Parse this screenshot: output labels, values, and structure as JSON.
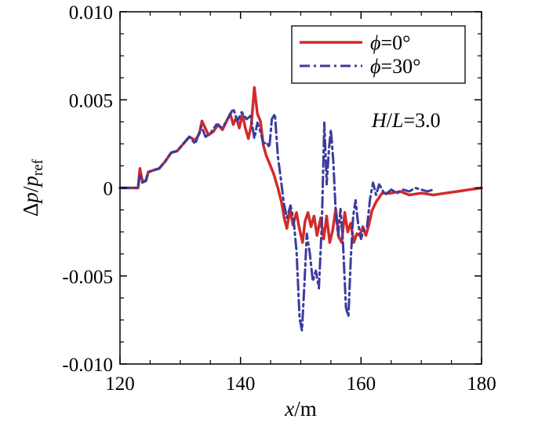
{
  "chart_data": {
    "type": "line",
    "xlabel": {
      "var": "x",
      "unit": "/m"
    },
    "ylabel": {
      "prefix": "Δ",
      "var": "p",
      "sep": "/",
      "var2": "p",
      "sub": "ref"
    },
    "xlim": [
      120,
      180
    ],
    "ylim": [
      -0.01,
      0.01
    ],
    "xticks": [
      {
        "value": 120,
        "label": "120"
      },
      {
        "value": 140,
        "label": "140"
      },
      {
        "value": 160,
        "label": "160"
      },
      {
        "value": 180,
        "label": "180"
      }
    ],
    "yticks": [
      {
        "value": 0.01,
        "label": "0.010"
      },
      {
        "value": 0.005,
        "label": "0.005"
      },
      {
        "value": 0,
        "label": "0"
      },
      {
        "value": -0.005,
        "label": "-0.005"
      },
      {
        "value": -0.01,
        "label": "-0.010"
      }
    ],
    "annotation": {
      "var": "H",
      "sep": "/",
      "var2": "L",
      "tail": "=3.0"
    },
    "legend_position": "top-right",
    "series": [
      {
        "name": "ϕ=0°",
        "name_parts": {
          "sym": "ϕ",
          "rest": "=0°"
        },
        "color": "#d42a2a",
        "dash": "solid",
        "points": [
          [
            120,
            0
          ],
          [
            123,
            0
          ],
          [
            123.3,
            0.0011
          ],
          [
            123.7,
            0.0004
          ],
          [
            124.3,
            0.0004
          ],
          [
            124.7,
            0.0009
          ],
          [
            125.5,
            0.001
          ],
          [
            126.5,
            0.0011
          ],
          [
            127.5,
            0.0015
          ],
          [
            128.5,
            0.002
          ],
          [
            129.5,
            0.0021
          ],
          [
            130.5,
            0.0025
          ],
          [
            131.5,
            0.0029
          ],
          [
            132.5,
            0.0027
          ],
          [
            133.2,
            0.0031
          ],
          [
            133.6,
            0.0038
          ],
          [
            134,
            0.0035
          ],
          [
            134.7,
            0.003
          ],
          [
            135.5,
            0.0032
          ],
          [
            136.3,
            0.0036
          ],
          [
            137,
            0.0033
          ],
          [
            137.7,
            0.0038
          ],
          [
            138.3,
            0.0042
          ],
          [
            138.8,
            0.0036
          ],
          [
            139.3,
            0.004
          ],
          [
            139.8,
            0.0034
          ],
          [
            140.3,
            0.0042
          ],
          [
            140.8,
            0.0034
          ],
          [
            141.3,
            0.0028
          ],
          [
            141.8,
            0.0036
          ],
          [
            142.3,
            0.0057
          ],
          [
            142.8,
            0.0042
          ],
          [
            143.3,
            0.0038
          ],
          [
            143.8,
            0.0024
          ],
          [
            144.3,
            0.0018
          ],
          [
            144.8,
            0.0014
          ],
          [
            145.5,
            0.0008
          ],
          [
            146.2,
            0
          ],
          [
            146.8,
            -0.0008
          ],
          [
            147.3,
            -0.0018
          ],
          [
            147.7,
            -0.0023
          ],
          [
            148.2,
            -0.0012
          ],
          [
            148.7,
            -0.0021
          ],
          [
            149.3,
            -0.0014
          ],
          [
            149.7,
            -0.0022
          ],
          [
            150.3,
            -0.0031
          ],
          [
            150.7,
            -0.0019
          ],
          [
            151.2,
            -0.0014
          ],
          [
            151.7,
            -0.0022
          ],
          [
            152.2,
            -0.0016
          ],
          [
            152.7,
            -0.0027
          ],
          [
            153.3,
            -0.0017
          ],
          [
            153.8,
            -0.0029
          ],
          [
            154.3,
            -0.0016
          ],
          [
            154.8,
            -0.0031
          ],
          [
            155.3,
            -0.0024
          ],
          [
            155.8,
            -0.0012
          ],
          [
            156.3,
            -0.0028
          ],
          [
            156.8,
            -0.0031
          ],
          [
            157.3,
            -0.0014
          ],
          [
            157.8,
            -0.0025
          ],
          [
            158.3,
            -0.002
          ],
          [
            158.8,
            -0.0031
          ],
          [
            159.3,
            -0.0026
          ],
          [
            159.8,
            -0.0027
          ],
          [
            160.3,
            -0.0022
          ],
          [
            160.8,
            -0.0027
          ],
          [
            161.3,
            -0.0021
          ],
          [
            161.8,
            -0.0013
          ],
          [
            162.5,
            -0.0008
          ],
          [
            163.5,
            -0.0003
          ],
          [
            165,
            -0.0003
          ],
          [
            166.5,
            -0.0002
          ],
          [
            168,
            -0.0004
          ],
          [
            170,
            -0.0003
          ],
          [
            172,
            -0.0004
          ],
          [
            174,
            -0.0003
          ],
          [
            176,
            -0.0002
          ],
          [
            178,
            -0.0001
          ],
          [
            180,
            0
          ]
        ]
      },
      {
        "name": "ϕ=30°",
        "name_parts": {
          "sym": "ϕ",
          "rest": "=30°"
        },
        "color": "#3b3c9c",
        "dash": "dashdot",
        "points": [
          [
            120,
            0
          ],
          [
            123,
            0
          ],
          [
            123.3,
            0.0008
          ],
          [
            123.7,
            0.0003
          ],
          [
            124.3,
            0.0004
          ],
          [
            124.7,
            0.0009
          ],
          [
            125.5,
            0.001
          ],
          [
            126.5,
            0.0011
          ],
          [
            127.5,
            0.0015
          ],
          [
            128.5,
            0.002
          ],
          [
            129.5,
            0.0021
          ],
          [
            130.5,
            0.0025
          ],
          [
            131.5,
            0.0029
          ],
          [
            132.5,
            0.0025
          ],
          [
            133.5,
            0.0035
          ],
          [
            134.2,
            0.0029
          ],
          [
            135,
            0.0031
          ],
          [
            136,
            0.0036
          ],
          [
            137,
            0.0034
          ],
          [
            138,
            0.004
          ],
          [
            138.8,
            0.0045
          ],
          [
            139.5,
            0.0038
          ],
          [
            140.2,
            0.0043
          ],
          [
            141,
            0.0039
          ],
          [
            141.7,
            0.0041
          ],
          [
            142.3,
            0.0028
          ],
          [
            142.8,
            0.0037
          ],
          [
            143.3,
            0.0032
          ],
          [
            143.8,
            0.0025
          ],
          [
            144.3,
            0.0026
          ],
          [
            144.8,
            0.0023
          ],
          [
            145.2,
            0.0039
          ],
          [
            145.7,
            0.0042
          ],
          [
            146.2,
            0.0018
          ],
          [
            146.7,
            0.0005
          ],
          [
            147.2,
            -0.0009
          ],
          [
            147.7,
            -0.0017
          ],
          [
            148.3,
            -0.001
          ],
          [
            148.8,
            -0.0018
          ],
          [
            149.3,
            -0.0036
          ],
          [
            149.8,
            -0.0074
          ],
          [
            150.2,
            -0.0081
          ],
          [
            150.6,
            -0.0055
          ],
          [
            151,
            -0.0026
          ],
          [
            151.5,
            -0.0037
          ],
          [
            152,
            -0.0053
          ],
          [
            152.5,
            -0.0047
          ],
          [
            153,
            -0.0057
          ],
          [
            153.5,
            -0.002
          ],
          [
            153.9,
            0.0037
          ],
          [
            154.3,
            0.0002
          ],
          [
            154.7,
            0.0023
          ],
          [
            155,
            0.0033
          ],
          [
            155.4,
            0.0015
          ],
          [
            155.8,
            -0.0014
          ],
          [
            156.2,
            -0.0027
          ],
          [
            156.6,
            -0.0012
          ],
          [
            157,
            -0.0031
          ],
          [
            157.5,
            -0.0068
          ],
          [
            157.9,
            -0.0073
          ],
          [
            158.3,
            -0.004
          ],
          [
            158.7,
            -0.0016
          ],
          [
            159.1,
            -0.0007
          ],
          [
            159.5,
            -0.002
          ],
          [
            160,
            -0.0029
          ],
          [
            160.5,
            -0.0023
          ],
          [
            161,
            -0.0022
          ],
          [
            161.5,
            -0.0006
          ],
          [
            162,
            0.0003
          ],
          [
            162.5,
            -0.0004
          ],
          [
            163,
            0.0002
          ],
          [
            164,
            -0.0004
          ],
          [
            165,
            -0.0001
          ],
          [
            166,
            -0.0003
          ],
          [
            167,
            -0.0001
          ],
          [
            168,
            -0.0002
          ],
          [
            169,
            0
          ],
          [
            170,
            -0.0001
          ],
          [
            171,
            -0.0002
          ],
          [
            172,
            -0.0001
          ]
        ]
      }
    ]
  }
}
